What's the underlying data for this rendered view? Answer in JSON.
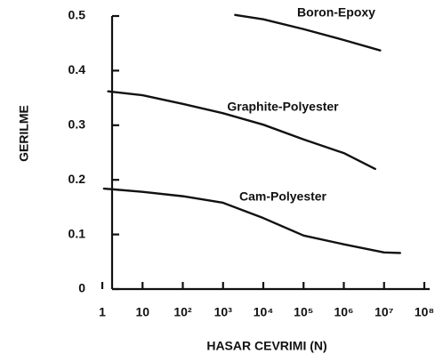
{
  "chart_data": {
    "type": "line",
    "x_scale": "log",
    "x_label": "HASAR CEVRIMI (N)",
    "y_label": "GERILME",
    "xlim": [
      1,
      100000000
    ],
    "xticks": [
      1,
      10,
      {
        "value": 100,
        "label": "10²"
      },
      {
        "value": 1000,
        "label": "10³"
      },
      {
        "value": 10000,
        "label": "10⁴"
      },
      {
        "value": 100000,
        "label": "10⁵"
      },
      {
        "value": 1000000,
        "label": "10⁶"
      },
      {
        "value": 10000000,
        "label": "10⁷"
      },
      {
        "value": 100000000,
        "label": "10⁸"
      }
    ],
    "ylim": [
      0,
      0.5
    ],
    "yticks": [
      0,
      0.1,
      0.2,
      0.3,
      0.4,
      0.5
    ],
    "series": [
      {
        "name": "Boron-Epoxy",
        "color": "#111111",
        "x": [
          2000,
          10000,
          100000,
          1000000,
          8000000
        ],
        "values": [
          0.502,
          0.494,
          0.476,
          0.456,
          0.437
        ]
      },
      {
        "name": "Graphite-Polyester",
        "color": "#111111",
        "x": [
          1.4,
          10,
          100,
          1000,
          10000,
          100000,
          1000000,
          6000000
        ],
        "values": [
          0.362,
          0.355,
          0.339,
          0.322,
          0.301,
          0.274,
          0.249,
          0.22
        ]
      },
      {
        "name": "Cam-Polyester",
        "color": "#111111",
        "x": [
          1.1,
          10,
          100,
          1000,
          10000,
          100000,
          1000000,
          10000000,
          25000000
        ],
        "values": [
          0.184,
          0.178,
          0.17,
          0.158,
          0.13,
          0.098,
          0.082,
          0.067,
          0.066
        ]
      }
    ]
  }
}
